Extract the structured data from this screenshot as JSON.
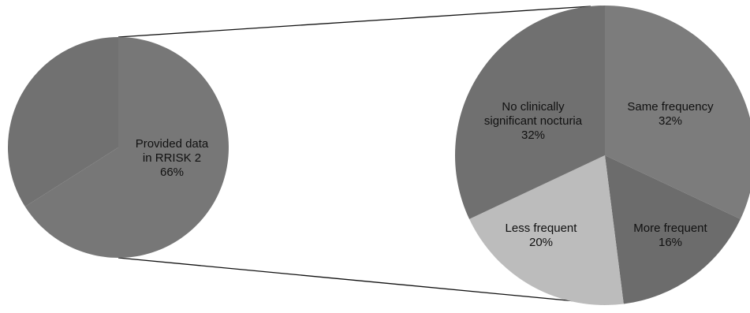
{
  "chart_data": [
    {
      "type": "pie",
      "categories": [
        "Provided data in RRISK 2",
        ""
      ],
      "values": [
        66,
        34
      ],
      "slice_labels": [
        [
          "Provided data",
          "in RRISK 2",
          "66%"
        ],
        []
      ],
      "colors": [
        "#777777",
        "#717171"
      ]
    },
    {
      "type": "pie",
      "categories": [
        "Same frequency",
        "More frequent",
        "Less frequent",
        "No clinically significant nocturia"
      ],
      "values": [
        32,
        16,
        20,
        32
      ],
      "slice_labels": [
        [
          "Same frequency",
          "32%"
        ],
        [
          "More frequent",
          "16%"
        ],
        [
          "Less frequent",
          "20%"
        ],
        [
          "No clinically",
          "significant nocturia",
          "32%"
        ]
      ],
      "colors": [
        "#7c7c7c",
        "#6c6c6c",
        "#bcbcbc",
        "#707070"
      ]
    }
  ],
  "colors": {
    "background": "#ffffff",
    "connector": "#111111",
    "label_text": "#111111"
  }
}
